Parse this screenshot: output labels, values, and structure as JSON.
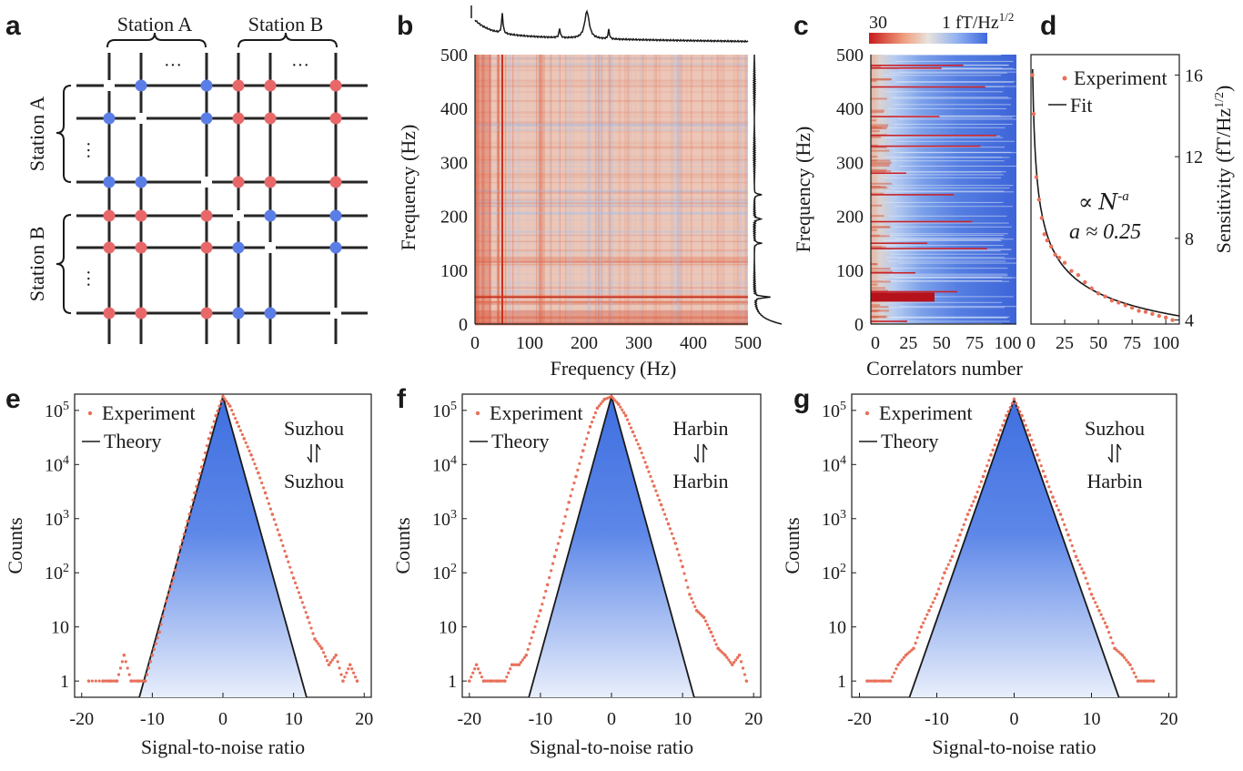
{
  "panel_labels": [
    "a",
    "b",
    "c",
    "d",
    "e",
    "f",
    "g"
  ],
  "panel_a": {
    "top_labels": [
      "Station A",
      "Station B"
    ],
    "side_labels": [
      "Station A",
      "Station B"
    ],
    "ellipsis": "···",
    "colors": {
      "red": "#e8686a",
      "blue": "#5b7ee6",
      "line": "#262626"
    },
    "grid": [
      [
        "x",
        "b",
        "x",
        "b",
        "r",
        "r",
        "x",
        "r"
      ],
      [
        "b",
        "x",
        "x",
        "b",
        "r",
        "r",
        "x",
        "r"
      ],
      [
        "b",
        "b",
        "x",
        "x",
        "r",
        "r",
        "x",
        "r"
      ],
      [
        "r",
        "r",
        "x",
        "r",
        "x",
        "b",
        "x",
        "b"
      ],
      [
        "r",
        "r",
        "x",
        "r",
        "b",
        "x",
        "x",
        "b"
      ],
      [
        "r",
        "r",
        "x",
        "r",
        "b",
        "b",
        "x",
        "x"
      ]
    ]
  },
  "chart_data": [
    {
      "id": "b",
      "type": "heatmap",
      "xlabel": "Frequency (Hz)",
      "ylabel": "Frequency (Hz)",
      "xlim": [
        0,
        500
      ],
      "ylim": [
        0,
        500
      ],
      "xticks": [
        "0",
        "100",
        "200",
        "300",
        "400",
        "500"
      ],
      "yticks": [
        "0",
        "100",
        "200",
        "300",
        "400",
        "500"
      ],
      "top_spectrum_peaks_hz": [
        50,
        155,
        205,
        245
      ],
      "side_spectrum_peaks_hz": [
        50,
        150,
        195,
        240
      ]
    },
    {
      "id": "c",
      "type": "heatmap",
      "xlabel": "Correlators number",
      "ylabel": "Frequency (Hz)",
      "xlim": [
        0,
        110
      ],
      "ylim": [
        0,
        500
      ],
      "xticks": [
        "0",
        "25",
        "50",
        "75",
        "100"
      ],
      "yticks": [
        "0",
        "100",
        "200",
        "300",
        "400",
        "500"
      ],
      "colorbar": {
        "min_label": "30",
        "max_label": "1",
        "unit": "fT/Hz",
        "unit_exp": "1/2"
      },
      "red_lines_hz": [
        5,
        50,
        60,
        95,
        140,
        150,
        190,
        240,
        280,
        330,
        350,
        385,
        440,
        475,
        480
      ]
    },
    {
      "id": "d",
      "type": "scatter",
      "ylabel": "Sensitivity (fT/Hz",
      "ylabel_exp": "1/2",
      "ylabel_close": ")",
      "xlim": [
        0,
        110
      ],
      "ylim": [
        3.8,
        17
      ],
      "xticks": [
        "0",
        "25",
        "50",
        "75",
        "100"
      ],
      "yticks": [
        "4",
        "8",
        "12",
        "16"
      ],
      "legend": [
        "Experiment",
        "Fit"
      ],
      "annotation_prop": "∝",
      "annotation_N": "N",
      "annotation_exp": "-a",
      "annotation_a": "a ≈ 0.25",
      "x": [
        1,
        2,
        4,
        6,
        8,
        10,
        12,
        15,
        18,
        21,
        25,
        30,
        35,
        40,
        45,
        50,
        55,
        60,
        65,
        70,
        75,
        80,
        85,
        90,
        95,
        100,
        105
      ],
      "y": [
        16.0,
        14.1,
        11.0,
        9.9,
        9.0,
        8.2,
        7.9,
        7.6,
        7.2,
        7.05,
        6.8,
        6.4,
        6.2,
        5.85,
        5.55,
        5.3,
        5.15,
        4.95,
        4.85,
        4.72,
        4.6,
        4.45,
        4.4,
        4.3,
        4.2,
        4.12,
        4.0
      ]
    },
    {
      "id": "e",
      "type": "scatter",
      "xlabel": "Signal-to-noise ratio",
      "ylabel": "Counts",
      "xlim": [
        -21,
        21
      ],
      "ylog_range": [
        -0.3,
        5.3
      ],
      "xticks": [
        "-20",
        "-10",
        "0",
        "10",
        "20"
      ],
      "yticks": [
        "1",
        "10",
        "10^2",
        "10^3",
        "10^4",
        "10^5"
      ],
      "legend": [
        "Experiment",
        "Theory"
      ],
      "stations": [
        "Suzhou",
        "Suzhou"
      ],
      "theory_peak": 180000,
      "theory_halfwidth": 11.2,
      "snr": [
        -19,
        -17,
        -16,
        -15,
        -14,
        -13,
        -12,
        -11,
        -10,
        -9,
        -8,
        -7,
        -6,
        -5,
        -4,
        -3,
        -2,
        -1,
        0,
        1,
        2,
        3,
        4,
        5,
        6,
        7,
        8,
        9,
        10,
        11,
        12,
        13,
        14,
        15,
        16,
        17,
        18,
        19
      ],
      "counts": [
        1,
        1,
        1,
        1,
        3,
        1,
        1,
        1,
        3,
        8,
        30,
        80,
        300,
        900,
        3000,
        9000,
        30000,
        80000,
        180000,
        120000,
        60000,
        30000,
        15000,
        7000,
        3000,
        1200,
        500,
        200,
        80,
        35,
        15,
        6,
        4,
        2,
        3,
        1,
        2,
        1
      ]
    },
    {
      "id": "f",
      "type": "scatter",
      "xlabel": "Signal-to-noise ratio",
      "ylabel": "Counts",
      "xlim": [
        -21,
        21
      ],
      "ylog_range": [
        -0.3,
        5.3
      ],
      "xticks": [
        "-20",
        "-10",
        "0",
        "10",
        "20"
      ],
      "yticks": [
        "1",
        "10",
        "10^2",
        "10^3",
        "10^4",
        "10^5"
      ],
      "legend": [
        "Experiment",
        "Theory"
      ],
      "stations": [
        "Harbin",
        "Harbin"
      ],
      "theory_peak": 180000,
      "theory_halfwidth": 11.0,
      "snr": [
        -20,
        -19,
        -18,
        -17,
        -16,
        -15,
        -14,
        -13,
        -12,
        -11,
        -10,
        -9,
        -8,
        -7,
        -6,
        -5,
        -4,
        -3,
        -2,
        -1,
        0,
        1,
        2,
        3,
        4,
        5,
        6,
        7,
        8,
        9,
        10,
        11,
        12,
        13,
        14,
        15,
        16,
        17,
        18,
        19
      ],
      "counts": [
        1,
        2,
        1,
        1,
        1,
        1,
        2,
        2,
        3,
        8,
        20,
        60,
        200,
        600,
        2000,
        6000,
        18000,
        50000,
        110000,
        160000,
        180000,
        130000,
        80000,
        40000,
        20000,
        9000,
        4000,
        1800,
        800,
        350,
        130,
        40,
        20,
        15,
        8,
        4,
        3,
        2,
        3,
        1
      ]
    },
    {
      "id": "g",
      "type": "scatter",
      "xlabel": "Signal-to-noise ratio",
      "ylabel": "Counts",
      "xlim": [
        -21,
        21
      ],
      "ylog_range": [
        -0.3,
        5.3
      ],
      "xticks": [
        "-20",
        "-10",
        "0",
        "10",
        "20"
      ],
      "yticks": [
        "1",
        "10",
        "10^2",
        "10^3",
        "10^4",
        "10^5"
      ],
      "legend": [
        "Experiment",
        "Theory"
      ],
      "stations": [
        "Suzhou",
        "Harbin"
      ],
      "theory_peak": 160000,
      "theory_halfwidth": 12.8,
      "snr": [
        -19,
        -18,
        -17,
        -16,
        -15,
        -14,
        -13,
        -12,
        -11,
        -10,
        -9,
        -8,
        -7,
        -6,
        -5,
        -4,
        -3,
        -2,
        -1,
        0,
        1,
        2,
        3,
        4,
        5,
        6,
        7,
        8,
        9,
        10,
        11,
        12,
        13,
        14,
        15,
        16,
        17,
        18
      ],
      "counts": [
        1,
        1,
        1,
        1,
        2,
        3,
        4,
        10,
        20,
        40,
        100,
        200,
        500,
        1200,
        2500,
        6000,
        15000,
        35000,
        80000,
        160000,
        80000,
        35000,
        15000,
        6000,
        2500,
        1200,
        500,
        200,
        100,
        40,
        20,
        10,
        4,
        3,
        2,
        1,
        1,
        1
      ]
    }
  ],
  "colors": {
    "accent_red": "#e8705a",
    "accent_blue": "#4a73e0",
    "axis": "#1a1a1a"
  }
}
